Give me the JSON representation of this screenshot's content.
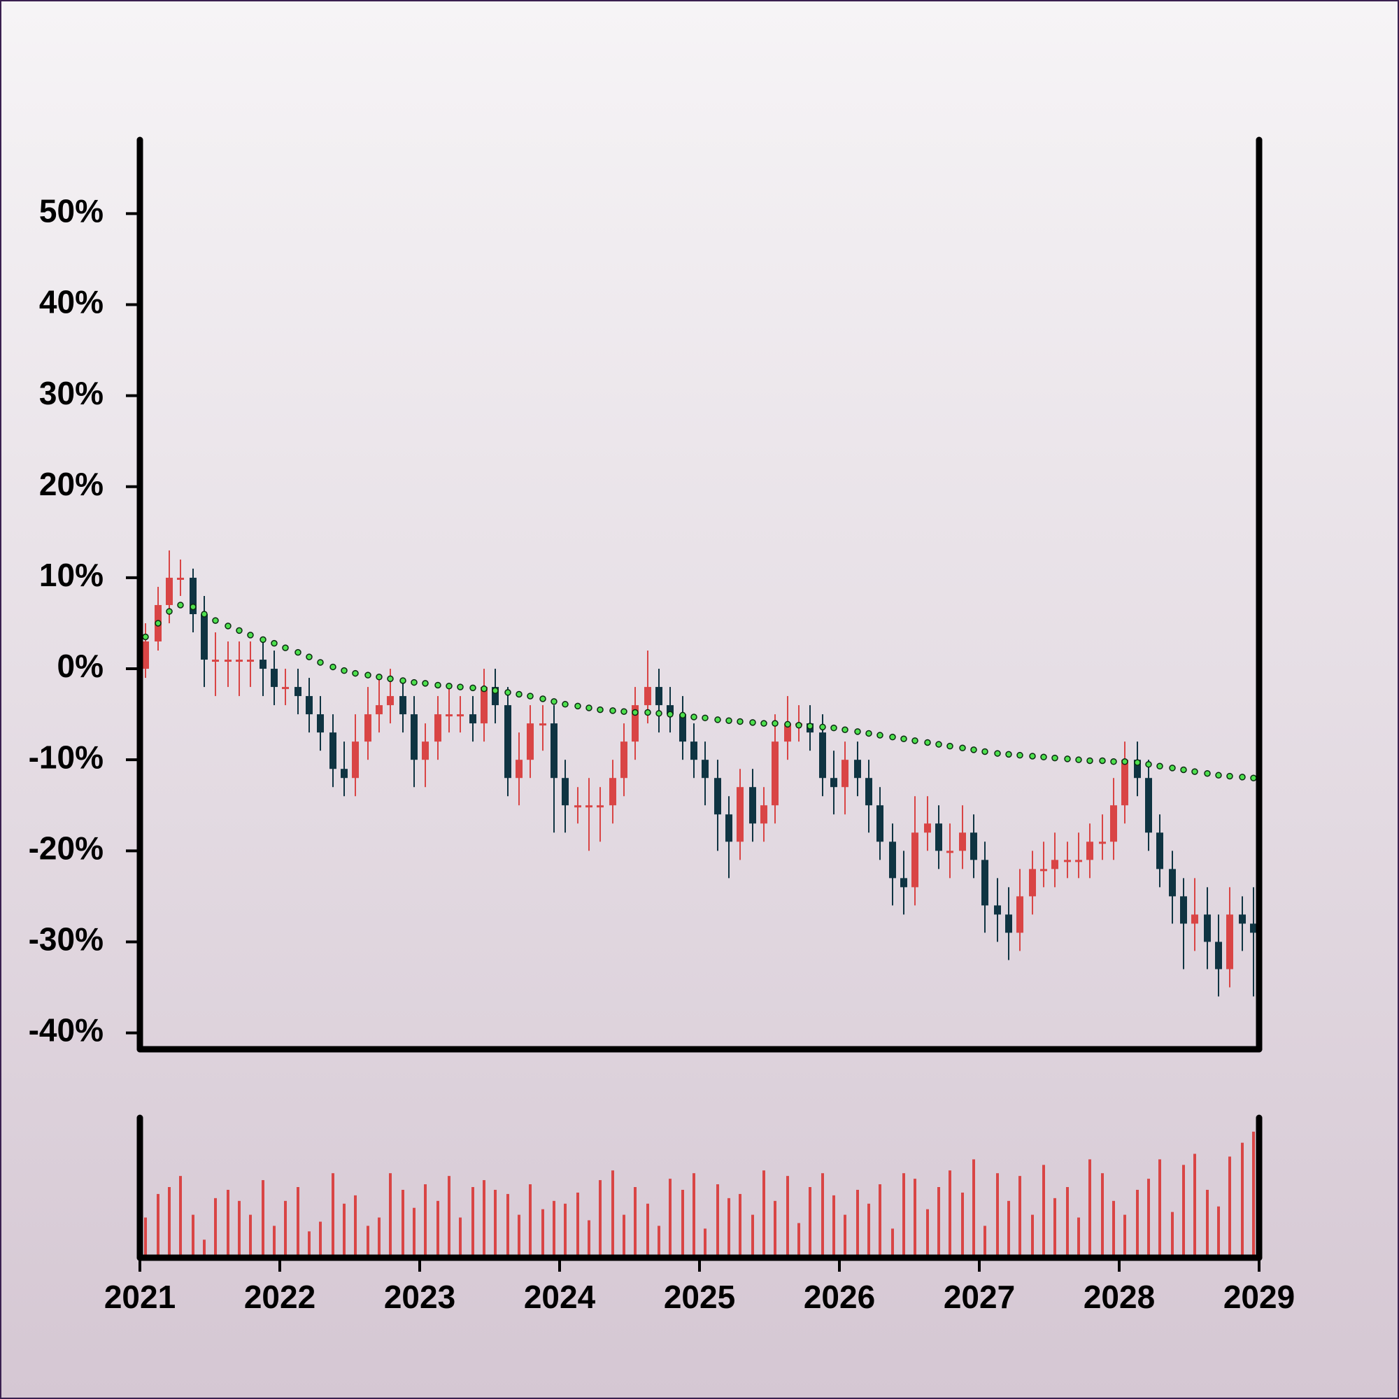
{
  "chart_data": {
    "type": "candlestick",
    "x": [
      2021.04,
      2021.13,
      2021.21,
      2021.29,
      2021.38,
      2021.46,
      2021.54,
      2021.63,
      2021.71,
      2021.79,
      2021.88,
      2021.96,
      2022.04,
      2022.13,
      2022.21,
      2022.29,
      2022.38,
      2022.46,
      2022.54,
      2022.63,
      2022.71,
      2022.79,
      2022.88,
      2022.96,
      2023.04,
      2023.13,
      2023.21,
      2023.29,
      2023.38,
      2023.46,
      2023.54,
      2023.63,
      2023.71,
      2023.79,
      2023.88,
      2023.96,
      2024.04,
      2024.13,
      2024.21,
      2024.29,
      2024.38,
      2024.46,
      2024.54,
      2024.63,
      2024.71,
      2024.79,
      2024.88,
      2024.96,
      2025.04,
      2025.13,
      2025.21,
      2025.29,
      2025.38,
      2025.46,
      2025.54,
      2025.63,
      2025.71,
      2025.79,
      2025.88,
      2025.96,
      2026.04,
      2026.13,
      2026.21,
      2026.29,
      2026.38,
      2026.46,
      2026.54,
      2026.63,
      2026.71,
      2026.79,
      2026.88,
      2026.96,
      2027.04,
      2027.13,
      2027.21,
      2027.29,
      2027.38,
      2027.46,
      2027.54,
      2027.63,
      2027.71,
      2027.79,
      2027.88,
      2027.96,
      2028.04,
      2028.13,
      2028.21,
      2028.29,
      2028.38,
      2028.46,
      2028.54,
      2028.63,
      2028.71,
      2028.79,
      2028.88,
      2028.96
    ],
    "open": [
      0,
      3,
      7,
      10,
      10,
      6,
      1,
      1,
      1,
      1,
      1,
      0,
      -2,
      -2,
      -3,
      -5,
      -7,
      -11,
      -12,
      -8,
      -5,
      -4,
      -3,
      -5,
      -10,
      -8,
      -5,
      -5,
      -5,
      -6,
      -2,
      -4,
      -12,
      -10,
      -6,
      -6,
      -12,
      -15,
      -15,
      -15,
      -15,
      -12,
      -8,
      -4,
      -2,
      -4,
      -5,
      -8,
      -10,
      -12,
      -16,
      -19,
      -13,
      -17,
      -15,
      -8,
      -6,
      -6,
      -7,
      -12,
      -13,
      -10,
      -12,
      -15,
      -19,
      -23,
      -24,
      -18,
      -17,
      -20,
      -20,
      -18,
      -21,
      -26,
      -27,
      -29,
      -25,
      -22,
      -22,
      -21,
      -21,
      -21,
      -19,
      -19,
      -15,
      -10,
      -12,
      -18,
      -22,
      -25,
      -28,
      -27,
      -30,
      -33,
      -27,
      -28
    ],
    "high": [
      5,
      9,
      13,
      12,
      11,
      8,
      4,
      3,
      3,
      3,
      3,
      2,
      0,
      0,
      -1,
      -3,
      -5,
      -8,
      -5,
      -2,
      -1,
      0,
      -1,
      -3,
      -6,
      -3,
      -2,
      -3,
      -3,
      0,
      0,
      -2,
      -7,
      -4,
      -4,
      -4,
      -10,
      -13,
      -12,
      -13,
      -10,
      -6,
      -2,
      2,
      0,
      -2,
      -3,
      -6,
      -8,
      -10,
      -14,
      -11,
      -11,
      -13,
      -5,
      -3,
      -4,
      -4,
      -5,
      -9,
      -8,
      -8,
      -10,
      -13,
      -17,
      -20,
      -14,
      -14,
      -15,
      -17,
      -15,
      -16,
      -19,
      -23,
      -24,
      -22,
      -20,
      -19,
      -18,
      -19,
      -18,
      -17,
      -16,
      -12,
      -8,
      -8,
      -10,
      -16,
      -20,
      -23,
      -23,
      -24,
      -27,
      -24,
      -25,
      -24
    ],
    "low": [
      -1,
      2,
      5,
      8,
      4,
      -2,
      -3,
      -2,
      -3,
      -2,
      -3,
      -4,
      -4,
      -5,
      -7,
      -9,
      -13,
      -14,
      -14,
      -10,
      -7,
      -6,
      -7,
      -13,
      -13,
      -10,
      -7,
      -7,
      -8,
      -8,
      -6,
      -14,
      -15,
      -12,
      -9,
      -18,
      -18,
      -17,
      -20,
      -19,
      -17,
      -14,
      -10,
      -6,
      -7,
      -7,
      -10,
      -12,
      -15,
      -20,
      -23,
      -21,
      -19,
      -19,
      -17,
      -10,
      -8,
      -9,
      -14,
      -16,
      -16,
      -14,
      -18,
      -21,
      -26,
      -27,
      -26,
      -20,
      -22,
      -23,
      -22,
      -23,
      -29,
      -30,
      -32,
      -31,
      -27,
      -24,
      -24,
      -23,
      -23,
      -23,
      -21,
      -21,
      -17,
      -14,
      -20,
      -24,
      -28,
      -33,
      -31,
      -33,
      -36,
      -35,
      -31,
      -36
    ],
    "close": [
      3,
      7,
      10,
      10,
      6,
      1,
      1,
      1,
      1,
      1,
      0,
      -2,
      -2,
      -3,
      -5,
      -7,
      -11,
      -12,
      -8,
      -5,
      -4,
      -3,
      -5,
      -10,
      -8,
      -5,
      -5,
      -5,
      -6,
      -2,
      -4,
      -12,
      -10,
      -6,
      -6,
      -12,
      -15,
      -15,
      -15,
      -15,
      -12,
      -8,
      -4,
      -2,
      -4,
      -5,
      -8,
      -10,
      -12,
      -16,
      -19,
      -13,
      -17,
      -15,
      -8,
      -6,
      -6,
      -7,
      -12,
      -13,
      -10,
      -12,
      -15,
      -19,
      -23,
      -24,
      -18,
      -17,
      -20,
      -20,
      -18,
      -21,
      -26,
      -27,
      -29,
      -25,
      -22,
      -22,
      -21,
      -21,
      -21,
      -19,
      -19,
      -15,
      -10,
      -12,
      -18,
      -22,
      -25,
      -28,
      -27,
      -30,
      -33,
      -27,
      -28,
      -29
    ],
    "ma": [
      3.5,
      5,
      6.3,
      7,
      6.8,
      6,
      5.3,
      4.7,
      4.2,
      3.7,
      3.2,
      2.8,
      2.3,
      1.8,
      1.3,
      0.7,
      0.2,
      -0.2,
      -0.5,
      -0.7,
      -0.9,
      -1.1,
      -1.3,
      -1.5,
      -1.6,
      -1.8,
      -1.9,
      -2,
      -2.1,
      -2.2,
      -2.4,
      -2.6,
      -2.8,
      -3,
      -3.3,
      -3.6,
      -3.9,
      -4.1,
      -4.3,
      -4.5,
      -4.6,
      -4.7,
      -4.8,
      -4.8,
      -4.9,
      -5,
      -5.1,
      -5.3,
      -5.4,
      -5.6,
      -5.7,
      -5.8,
      -5.9,
      -6,
      -6,
      -6.1,
      -6.2,
      -6.3,
      -6.4,
      -6.5,
      -6.7,
      -6.9,
      -7.1,
      -7.3,
      -7.5,
      -7.7,
      -7.9,
      -8.1,
      -8.3,
      -8.5,
      -8.7,
      -8.9,
      -9.1,
      -9.3,
      -9.4,
      -9.5,
      -9.6,
      -9.7,
      -9.8,
      -9.9,
      -10,
      -10.1,
      -10.1,
      -10.2,
      -10.2,
      -10.3,
      -10.5,
      -10.7,
      -10.9,
      -11.1,
      -11.3,
      -11.5,
      -11.7,
      -11.8,
      -11.9,
      -12
    ],
    "volume": [
      28,
      45,
      50,
      58,
      30,
      12,
      42,
      48,
      40,
      30,
      55,
      22,
      40,
      50,
      18,
      25,
      60,
      38,
      44,
      22,
      28,
      60,
      48,
      35,
      52,
      40,
      58,
      28,
      50,
      55,
      48,
      45,
      30,
      52,
      34,
      40,
      38,
      46,
      26,
      55,
      62,
      30,
      50,
      38,
      22,
      56,
      48,
      60,
      20,
      52,
      42,
      45,
      30,
      62,
      40,
      58,
      24,
      50,
      60,
      44,
      30,
      48,
      38,
      52,
      20,
      60,
      56,
      34,
      50,
      62,
      46,
      70,
      22,
      60,
      40,
      58,
      30,
      66,
      42,
      50,
      28,
      70,
      60,
      40,
      30,
      48,
      56,
      70,
      32,
      66,
      74,
      48,
      36,
      72,
      82,
      90
    ],
    "vlim": [
      0,
      100
    ],
    "xlim": [
      2021,
      2029
    ],
    "xticks": [
      2021,
      2022,
      2023,
      2024,
      2025,
      2026,
      2027,
      2028,
      2029
    ],
    "ylim": [
      -41.8,
      58.1
    ],
    "yticks": [
      {
        "value": -40,
        "label": "-40%"
      },
      {
        "value": -30,
        "label": "-30%"
      },
      {
        "value": -20,
        "label": "-20%"
      },
      {
        "value": -10,
        "label": "-10%"
      },
      {
        "value": 0,
        "label": "0%"
      },
      {
        "value": 10,
        "label": "10%"
      },
      {
        "value": 20,
        "label": "20%"
      },
      {
        "value": 30,
        "label": "30%"
      },
      {
        "value": 40,
        "label": "40%"
      },
      {
        "value": 50,
        "label": "50%"
      }
    ],
    "up_color": "#d94545",
    "down_color": "#0f3442",
    "ma_color": "#4ee04e",
    "volume_color": "#d94545"
  }
}
